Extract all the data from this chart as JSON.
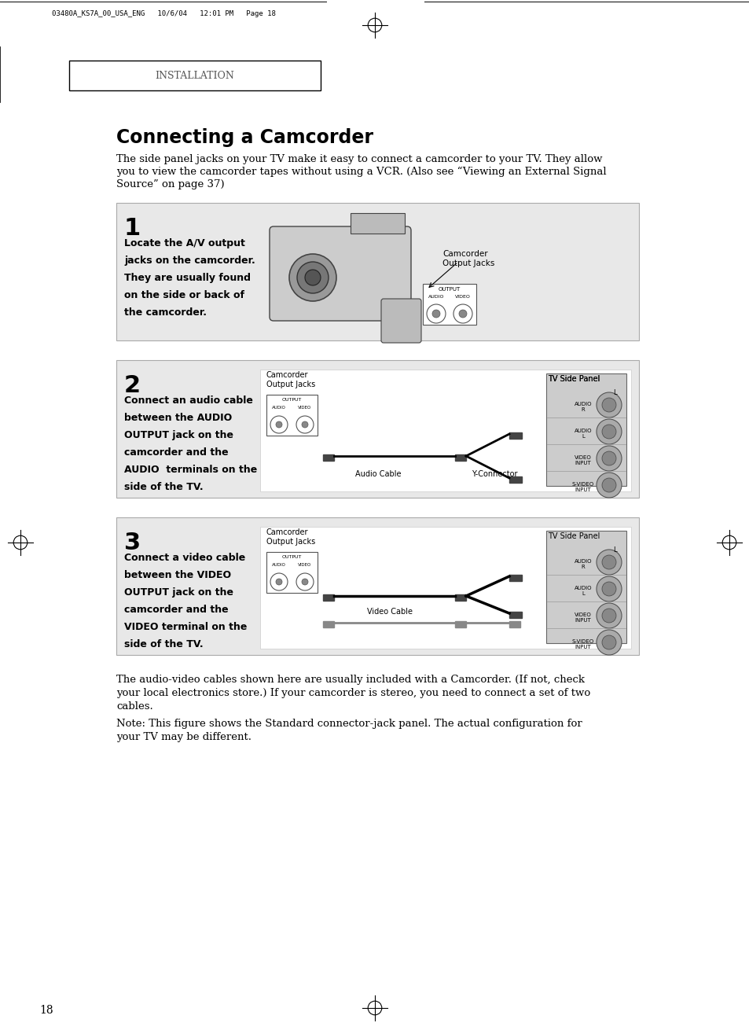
{
  "bg_color": "#ffffff",
  "page_title": "INSTALLATION",
  "header_text": "03480A_KS7A_00_USA_ENG   10/6/04   12:01 PM   Page 18",
  "main_title": "Connecting a Camcorder",
  "intro_text": "The side panel jacks on your TV make it easy to connect a camcorder to your TV. They allow\nyou to view the camcorder tapes without using a VCR. (Also see “Viewing an External Signal\nSource” on page 37)",
  "step1_num": "1",
  "step1_text": "Locate the A/V output\njacks on the camcorder.\nThey are usually found\non the side or back of\nthe camcorder.",
  "step2_num": "2",
  "step2_text": "Connect an audio cable\nbetween the AUDIO\nOUTPUT jack on the\ncamcorder and the\nAUDIO  terminals on the\nside of the TV.",
  "step3_num": "3",
  "step3_text": "Connect a video cable\nbetween the VIDEO\nOUTPUT jack on the\ncamcorder and the\nVIDEO terminal on the\nside of the TV.",
  "footer_text1": "The audio-video cables shown here are usually included with a Camcorder. (If not, check\nyour local electronics store.) If your camcorder is stereo, you need to connect a set of two\ncables.",
  "footer_text2": "Note: This figure shows the Standard connector-jack panel. The actual configuration for\nyour TV may be different.",
  "page_num": "18",
  "box_bg": "#e8e8e8",
  "box_border": "#999999"
}
